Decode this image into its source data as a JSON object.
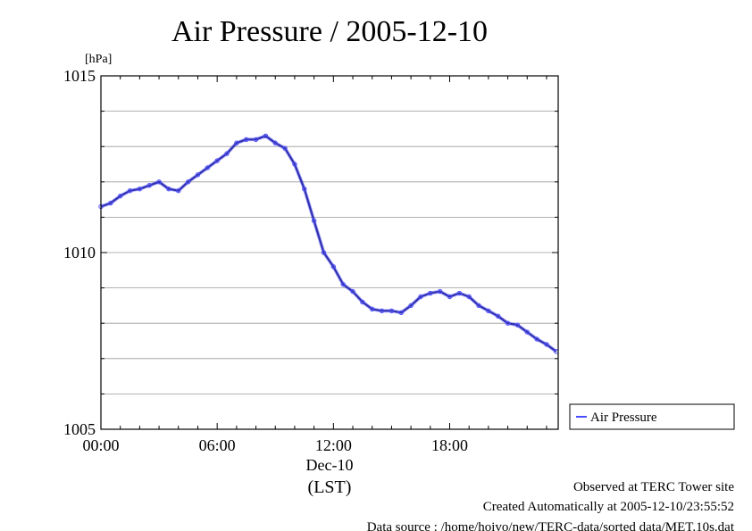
{
  "chart_data": {
    "type": "line",
    "title": "Air Pressure / 2005-12-10",
    "ylabel": "[hPa]",
    "xlabel": "(LST)",
    "x_date_label": "Dec-10",
    "ylim": [
      1005,
      1015
    ],
    "y_ticks": [
      1005,
      1010,
      1015
    ],
    "xlim_hours": [
      0,
      23.6
    ],
    "x_ticks": [
      {
        "hour": 0,
        "label": "00:00"
      },
      {
        "hour": 6,
        "label": "06:00"
      },
      {
        "hour": 12,
        "label": "12:00"
      },
      {
        "hour": 18,
        "label": "18:00"
      }
    ],
    "grid": true,
    "legend_position": "right",
    "series": [
      {
        "name": "Air Pressure",
        "color": "#4b4bff",
        "x_hours": [
          0.0,
          0.5,
          1.0,
          1.5,
          2.0,
          2.5,
          3.0,
          3.5,
          4.0,
          4.5,
          5.0,
          5.5,
          6.0,
          6.5,
          7.0,
          7.5,
          8.0,
          8.5,
          9.0,
          9.5,
          10.0,
          10.5,
          11.0,
          11.5,
          12.0,
          12.5,
          13.0,
          13.5,
          14.0,
          14.5,
          15.0,
          15.5,
          16.0,
          16.5,
          17.0,
          17.5,
          18.0,
          18.5,
          19.0,
          19.5,
          20.0,
          20.5,
          21.0,
          21.5,
          22.0,
          22.5,
          23.0,
          23.5
        ],
        "values": [
          1011.3,
          1011.4,
          1011.6,
          1011.75,
          1011.8,
          1011.9,
          1012.0,
          1011.8,
          1011.75,
          1012.0,
          1012.2,
          1012.4,
          1012.6,
          1012.8,
          1013.1,
          1013.2,
          1013.2,
          1013.3,
          1013.1,
          1012.95,
          1012.5,
          1011.8,
          1010.9,
          1010.0,
          1009.6,
          1009.1,
          1008.9,
          1008.6,
          1008.4,
          1008.35,
          1008.35,
          1008.3,
          1008.5,
          1008.75,
          1008.85,
          1008.9,
          1008.75,
          1008.85,
          1008.75,
          1008.5,
          1008.35,
          1008.2,
          1008.0,
          1007.95,
          1007.75,
          1007.55,
          1007.4,
          1007.2
        ]
      }
    ]
  },
  "footer": {
    "line1": "Observed at TERC Tower site",
    "line2": "Created Automatically at 2005-12-10/23:55:52",
    "line3": "Data source : /home/hoivo/new/TERC-data/sorted  data/MET.10s.dat"
  }
}
